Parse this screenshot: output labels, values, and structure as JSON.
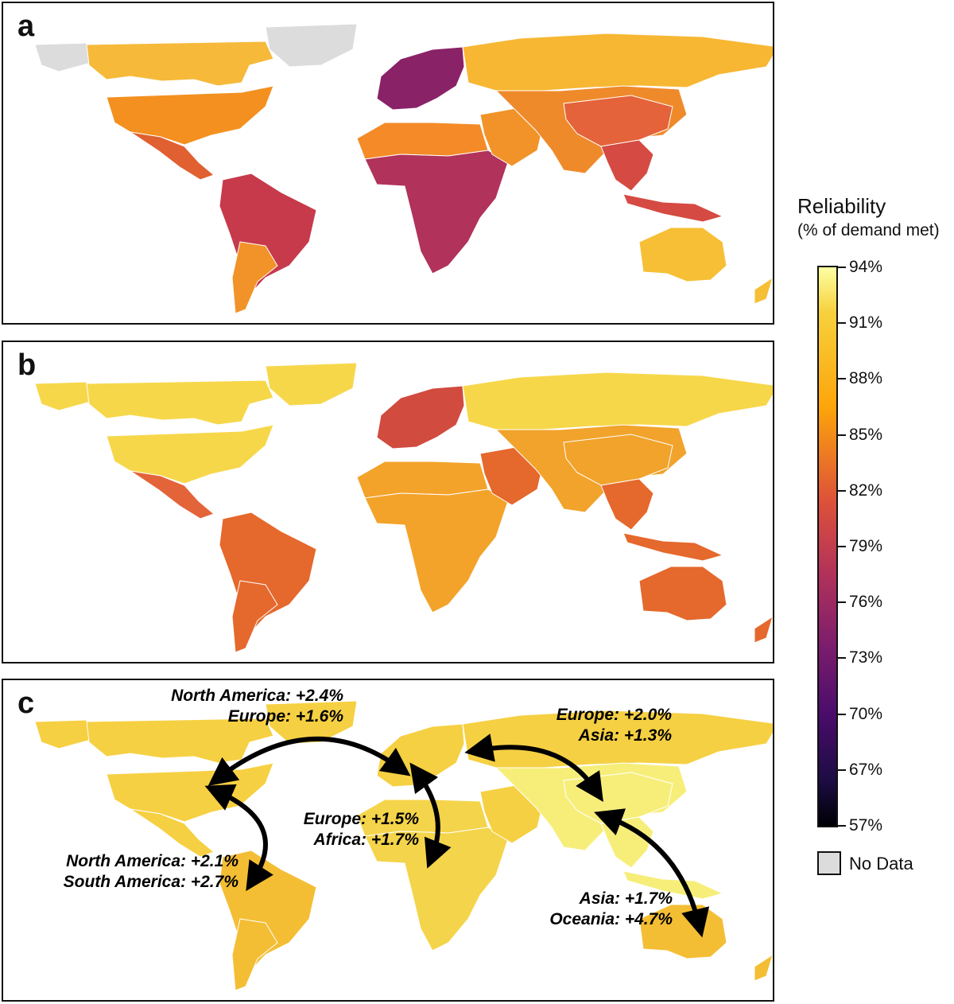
{
  "panels": [
    {
      "letter": "a",
      "continent_colors": {
        "north_america": "#f6b93a",
        "usa": "#f3901f",
        "mexico": "#e06031",
        "greenland": "#dcdcdc",
        "south_america": "#c63a4c",
        "argentina": "#f19328",
        "europe": "#8a2267",
        "africa": "#b1325a",
        "north_africa": "#f48b28",
        "middle_east": "#f19328",
        "russia": "#f7b733",
        "asia": "#ef8a2b",
        "china": "#e4633a",
        "southeast_asia": "#d54a42",
        "oceania": "#f6bf35"
      }
    },
    {
      "letter": "b",
      "continent_colors": {
        "north_america": "#f7d74a",
        "usa": "#f7d74a",
        "mexico": "#e4643a",
        "greenland": "#f7d74a",
        "south_america": "#e5682c",
        "argentina": "#e5682c",
        "europe": "#d14b3f",
        "africa": "#f3a32a",
        "north_africa": "#f3a32a",
        "middle_east": "#e5682c",
        "russia": "#f7d74a",
        "asia": "#f1a32b",
        "china": "#f1a32b",
        "southeast_asia": "#e5682c",
        "oceania": "#e5682c"
      }
    },
    {
      "letter": "c",
      "continent_colors": {
        "north_america": "#f6d043",
        "usa": "#f6d043",
        "mexico": "#f6d043",
        "greenland": "#f6d043",
        "south_america": "#f4be34",
        "argentina": "#f4be34",
        "europe": "#f6d043",
        "africa": "#f4d44a",
        "north_africa": "#f4d44a",
        "middle_east": "#f6d043",
        "russia": "#f6d043",
        "asia": "#f7ee7a",
        "china": "#f7ee7a",
        "southeast_asia": "#f7ee7a",
        "oceania": "#f4be34"
      }
    }
  ],
  "legend": {
    "title": "Reliability",
    "subtitle": "(% of demand met)",
    "ticks": [
      "94%",
      "91%",
      "88%",
      "85%",
      "82%",
      "79%",
      "76%",
      "73%",
      "70%",
      "67%",
      "57%"
    ],
    "no_data_label": "No Data",
    "no_data_color": "#dcdcdc"
  },
  "annotations": {
    "na_europe": {
      "line1": "North America: +2.4%",
      "line2": "Europe: +1.6%"
    },
    "europe_asia": {
      "line1": "Europe: +2.0%",
      "line2": "Asia: +1.3%"
    },
    "europe_africa": {
      "line1": "Europe: +1.5%",
      "line2": "Africa: +1.7%"
    },
    "na_sa": {
      "line1": "North America: +2.1%",
      "line2": "South America: +2.7%"
    },
    "asia_oceania": {
      "line1": "Asia: +1.7%",
      "line2": "Oceania: +4.7%"
    }
  }
}
